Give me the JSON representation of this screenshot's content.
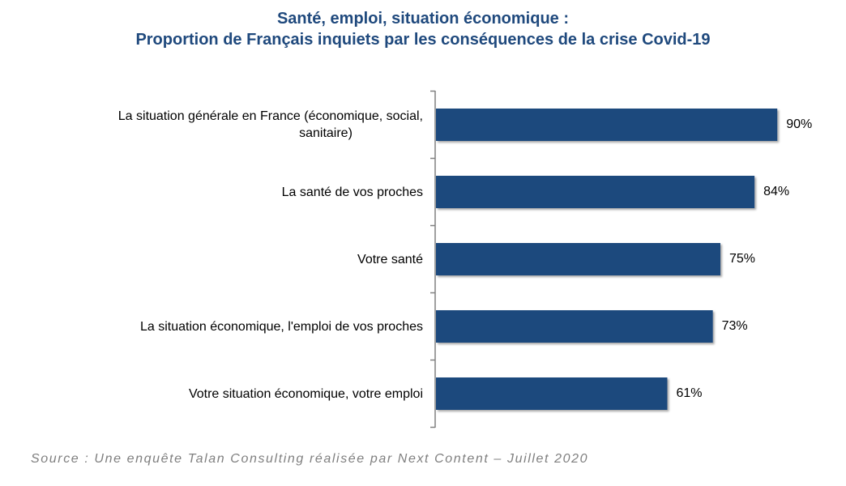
{
  "title": {
    "line1": "Santé, emploi, situation économique :",
    "line2": "Proportion de Français inquiets par les conséquences de la crise Covid-19"
  },
  "source": "Source : Une enquête Talan Consulting réalisée par Next Content – Juillet 2020",
  "colors": {
    "bar": "#1f497d",
    "title": "#1f497d",
    "source": "#7f7f7f",
    "axis": "#808080"
  },
  "chart_data": {
    "type": "bar",
    "orientation": "horizontal",
    "title": "Santé, emploi, situation économique : Proportion de Français inquiets par les conséquences de la crise Covid-19",
    "categories": [
      "La situation générale en France (économique, social, sanitaire)",
      "La santé de vos proches",
      "Votre santé",
      "La situation économique, l'emploi de vos proches",
      "Votre situation économique, votre emploi"
    ],
    "category_lines": [
      [
        "La situation générale en France (économique, social,",
        "sanitaire)"
      ],
      [
        "La santé de vos proches"
      ],
      [
        "Votre santé"
      ],
      [
        "La situation économique, l'emploi de vos proches"
      ],
      [
        "Votre situation économique, votre emploi"
      ]
    ],
    "values": [
      90,
      84,
      75,
      73,
      61
    ],
    "value_labels": [
      "90%",
      "84%",
      "75%",
      "73%",
      "61%"
    ],
    "unit": "%",
    "xlim": [
      0,
      100
    ],
    "xlabel": "",
    "ylabel": "",
    "grid": false,
    "legend": "none"
  }
}
